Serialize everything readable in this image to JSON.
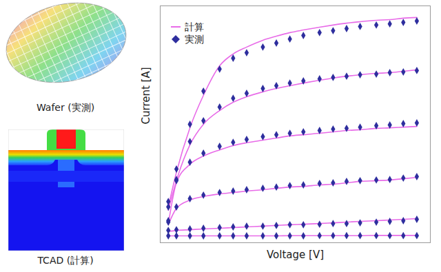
{
  "chart_data": {
    "type": "line",
    "x_label": "Voltage [V]",
    "y_label": "Current [A]",
    "tick_labels": false,
    "xlim": [
      0,
      10
    ],
    "ylim": [
      0,
      10
    ],
    "legend": "top-left",
    "x": [
      0.3,
      0.6,
      1.1,
      1.6,
      2.2,
      2.7,
      3.2,
      3.8,
      4.3,
      4.8,
      5.3,
      5.9,
      6.4,
      6.9,
      7.4,
      8.0,
      8.5,
      9.0,
      9.5
    ],
    "series": [
      {
        "name": "計算",
        "color": "#e86be8",
        "type": "line",
        "line_style": "solid",
        "values": [
          [
            1.51,
            2.97,
            4.85,
            6.22,
            7.47,
            7.97,
            8.26,
            8.55,
            8.72,
            8.87,
            8.98,
            9.1,
            9.19,
            9.27,
            9.33,
            9.39,
            9.42,
            9.48,
            9.51
          ],
          [
            1.37,
            2.62,
            4.13,
            5.0,
            5.58,
            5.93,
            6.16,
            6.37,
            6.51,
            6.63,
            6.74,
            6.86,
            6.95,
            7.03,
            7.09,
            7.15,
            7.18,
            7.24,
            7.3
          ],
          [
            0.78,
            2.53,
            3.31,
            3.66,
            3.92,
            4.1,
            4.22,
            4.33,
            4.42,
            4.51,
            4.56,
            4.62,
            4.68,
            4.74,
            4.77,
            4.83,
            4.85,
            4.88,
            4.91
          ],
          [
            0.76,
            1.45,
            1.8,
            1.95,
            2.06,
            2.12,
            2.18,
            2.24,
            2.3,
            2.35,
            2.38,
            2.44,
            2.47,
            2.53,
            2.59,
            2.62,
            2.65,
            2.7,
            2.76
          ],
          [
            0.47,
            0.52,
            0.55,
            0.58,
            0.61,
            0.64,
            0.67,
            0.7,
            0.73,
            0.76,
            0.78,
            0.81,
            0.84,
            0.87,
            0.9,
            0.93,
            0.96,
            0.99,
            1.02
          ],
          [
            0.29,
            0.29,
            0.29,
            0.29,
            0.29,
            0.29,
            0.29,
            0.29,
            0.29,
            0.3,
            0.3,
            0.3,
            0.3,
            0.3,
            0.3,
            0.31,
            0.31,
            0.31,
            0.31
          ]
        ]
      },
      {
        "name": "実測",
        "color": "#2e2e9e",
        "type": "scatter",
        "marker": "diamond",
        "values": [
          [
            1.74,
            3.11,
            5.0,
            6.4,
            7.33,
            7.79,
            8.02,
            8.26,
            8.43,
            8.6,
            8.75,
            8.87,
            8.95,
            9.04,
            9.13,
            9.19,
            9.24,
            9.3,
            9.36
          ],
          [
            1.51,
            2.67,
            4.27,
            5.15,
            5.73,
            6.1,
            6.31,
            6.51,
            6.63,
            6.74,
            6.83,
            6.92,
            6.98,
            7.03,
            7.09,
            7.12,
            7.18,
            7.21,
            7.27
          ],
          [
            0.93,
            2.62,
            3.4,
            3.78,
            4.07,
            4.24,
            4.36,
            4.48,
            4.56,
            4.62,
            4.68,
            4.74,
            4.8,
            4.83,
            4.88,
            4.94,
            4.97,
            5.03,
            5.06
          ],
          [
            0.87,
            1.51,
            1.86,
            2.01,
            2.12,
            2.18,
            2.24,
            2.3,
            2.35,
            2.41,
            2.44,
            2.5,
            2.53,
            2.59,
            2.62,
            2.65,
            2.67,
            2.73,
            2.79
          ],
          [
            0.52,
            0.55,
            0.58,
            0.61,
            0.64,
            0.67,
            0.7,
            0.7,
            0.73,
            0.76,
            0.76,
            0.78,
            0.81,
            0.81,
            0.84,
            0.87,
            0.9,
            0.93,
            0.99
          ],
          [
            0.29,
            0.29,
            0.29,
            0.29,
            0.29,
            0.29,
            0.29,
            0.29,
            0.29,
            0.29,
            0.29,
            0.3,
            0.3,
            0.3,
            0.3,
            0.3,
            0.3,
            0.3,
            0.3
          ]
        ]
      }
    ]
  },
  "images": [
    {
      "caption": "Wafer (実測)"
    },
    {
      "caption": "TCAD (計算)"
    }
  ]
}
